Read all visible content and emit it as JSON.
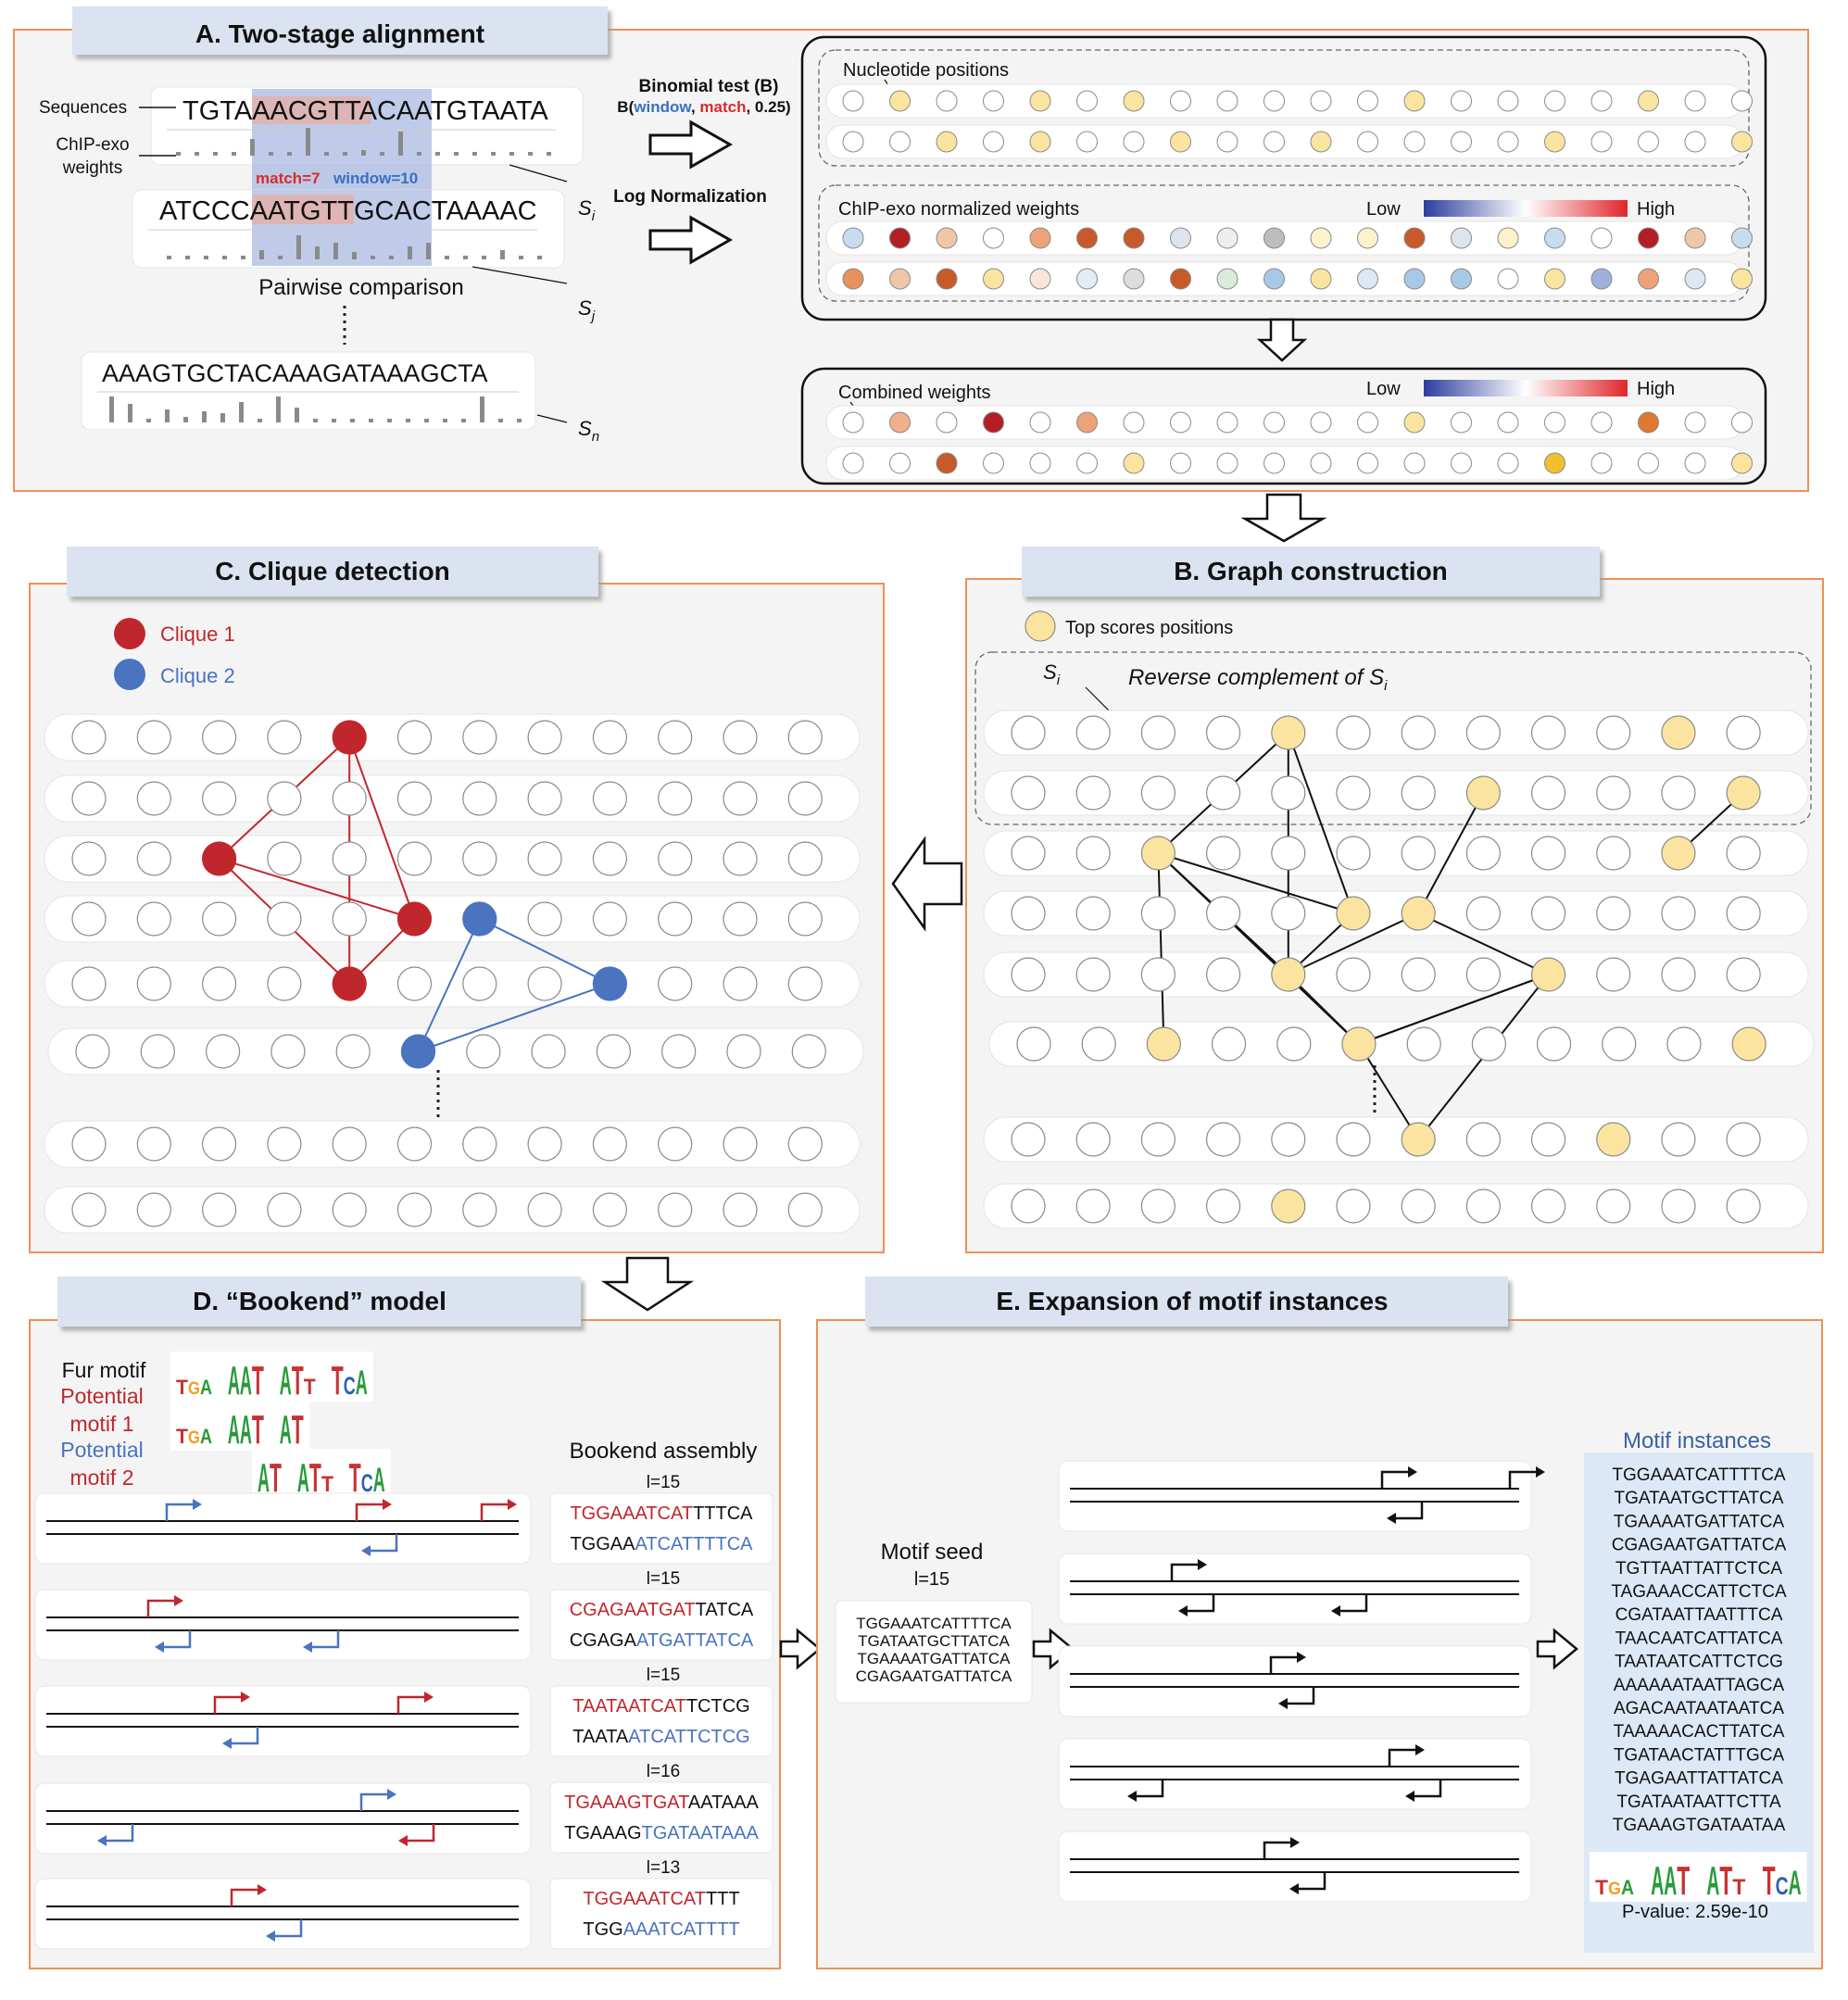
{
  "panel_a": {
    "title": "A. Two-stage alignment",
    "label_sequences": "Sequences",
    "label_chipexo_1": "ChIP-exo",
    "label_chipexo_2": "weights",
    "seq_i": "TGTAAACGTTACAATGTAATA",
    "seq_j": "ATCCCAATGTTGCACTAAAAC",
    "seq_n": "AAAGTGCTACAAAGATAAAGCTA",
    "match_text": "match=7",
    "window_text": "window=10",
    "pairwise": "Pairwise comparison",
    "s_i": "S",
    "s_i_sub": "i",
    "s_j_sub": "j",
    "s_n_sub": "n",
    "binomial": "Binomial test (B)",
    "binomial_b": "B(",
    "binomial_window": "window",
    "binomial_comma1": ", ",
    "binomial_match": "match",
    "binomial_rest": ", 0.25)",
    "lognorm": "Log Normalization",
    "nucleotide_positions": "Nucleotide positions",
    "chipexo_norm": "ChIP-exo normalized weights",
    "combined": "Combined weights",
    "low": "Low",
    "high": "High",
    "nuc_row1": [
      "#fff",
      "#fbe4a0",
      "#fff",
      "#fff",
      "#fbe4a0",
      "#fff",
      "#fbe4a0",
      "#fff",
      "#fff",
      "#fff",
      "#fff",
      "#fff",
      "#fbe4a0",
      "#fff",
      "#fff",
      "#fff",
      "#fff",
      "#fbe4a0",
      "#fff",
      "#fff"
    ],
    "nuc_row2": [
      "#fff",
      "#fff",
      "#fbe4a0",
      "#fff",
      "#fbe4a0",
      "#fff",
      "#fff",
      "#fbe4a0",
      "#fff",
      "#fff",
      "#fbe4a0",
      "#fff",
      "#fff",
      "#fff",
      "#fff",
      "#fbe4a0",
      "#fff",
      "#fff",
      "#fff",
      "#fbe4a0"
    ],
    "chip_row1": [
      "#c8dcf0",
      "#b21e24",
      "#f0c6a8",
      "#fff",
      "#eda27a",
      "#c85a2a",
      "#c85a2a",
      "#dde4ee",
      "#eeeeee",
      "#bdbdbd",
      "#fdf2cc",
      "#fdf2cc",
      "#c85a2a",
      "#dde4ee",
      "#fdf2cc",
      "#c8dcf0",
      "#fff",
      "#b21e24",
      "#f0c6a8",
      "#c8dcf0"
    ],
    "chip_row2": [
      "#e8905e",
      "#f0c6a8",
      "#c85a2a",
      "#fbe4a0",
      "#fbe4d8",
      "#e0ecf6",
      "#dddddd",
      "#c85a2a",
      "#dceadc",
      "#a8c8e8",
      "#fbe4a0",
      "#dce8f4",
      "#a8c8e8",
      "#a8c8e8",
      "#fff",
      "#fbe4a0",
      "#9fb0dc",
      "#eda27a",
      "#dce8f4",
      "#fbe4a0"
    ],
    "comb_row1": [
      "#fff",
      "#f0b088",
      "#fff",
      "#b21e24",
      "#fff",
      "#eda27a",
      "#fff",
      "#fff",
      "#fff",
      "#fff",
      "#fff",
      "#fff",
      "#fbe4a0",
      "#fff",
      "#fff",
      "#fff",
      "#fff",
      "#e07830",
      "#fff",
      "#fff"
    ],
    "comb_row2": [
      "#fff",
      "#fff",
      "#c85a2a",
      "#fff",
      "#fff",
      "#fff",
      "#fbe4a0",
      "#fff",
      "#fff",
      "#fff",
      "#fff",
      "#fff",
      "#fff",
      "#fff",
      "#fff",
      "#f0c030",
      "#fff",
      "#fff",
      "#fff",
      "#fbe4a0"
    ],
    "colors": {
      "match": "#d62c2c",
      "window": "#3a6fc4",
      "frame": "#ee9055"
    }
  },
  "panel_b": {
    "title": "B. Graph construction",
    "legend": "Top scores positions",
    "s_i": "S",
    "s_i_sub": "i",
    "reverse_complement": "Reverse complement of S",
    "reverse_complement_sub": "i"
  },
  "panel_c": {
    "title": "C. Clique detection",
    "clique1": "Clique 1",
    "clique2": "Clique 2",
    "colors": {
      "clique1": "#c0272d",
      "clique2": "#4a73c0"
    }
  },
  "panel_d": {
    "title": "D. “Bookend” model",
    "fur_motif": "Fur motif",
    "potential1_a": "Potential",
    "potential1_b": "motif 1",
    "potential2_a": "Potential",
    "potential2_b": "motif 2",
    "logo_fur": "TGA AAT ATT TCA",
    "logo_p1": "TGA AAT AT",
    "logo_p2": "AT ATT TCA",
    "bookend_assembly": "Bookend assembly",
    "assemblies": [
      {
        "l": "l=15",
        "top_red": "TGGAAATCAT",
        "top_black": "TTTCA",
        "bot_black": "TGGAA",
        "bot_blue": "ATCATTTTCA"
      },
      {
        "l": "l=15",
        "top_red": "CGAGAATGAT",
        "top_black": "TATCA",
        "bot_black": "CGAGA",
        "bot_blue": "ATGATTATCA"
      },
      {
        "l": "l=15",
        "top_red": "TAATAATCAT",
        "top_black": "TCTCG",
        "bot_black": "TAATA",
        "bot_blue": "ATCATTCTCG"
      },
      {
        "l": "l=16",
        "top_red": "TGAAAGTGAT",
        "top_black": "AATAAA",
        "bot_black": "TGAAAG",
        "bot_blue": "TGATAATAAA"
      },
      {
        "l": "l=13",
        "top_red": "TGGAAATCAT",
        "top_black": "TTT",
        "bot_black": "TGG",
        "bot_blue": "AAATCATTTT"
      }
    ]
  },
  "panel_e": {
    "title": "E. Expansion of motif instances",
    "motif_seed": "Motif seed",
    "seed_l": "l=15",
    "seeds": [
      "TGGAAATCATTTTCA",
      "TGATAATGCTTATCA",
      "TGAAAATGATTATCA",
      "CGAGAATGATTATCA"
    ],
    "motif_instances": "Motif instances",
    "instances": [
      "TGGAAATCATTTTCA",
      "TGATAATGCTTATCA",
      "TGAAAATGATTATCA",
      "CGAGAATGATTATCA",
      "TGTTAATTATTCTCA",
      "TAGAAACCATTCTCA",
      "CGATAATTAATTTCA",
      "TAACAATCATTATCA",
      "TAATAATCATTCTCG",
      "AAAAAATAATTAGCA",
      "AGACAATAATAATCA",
      "TAAAAACACTTATCA",
      "TGATAACTATTTGCA",
      "TGAGAATTATTATCA",
      "TGATAATAATTCTTA",
      "TGAAAGTGATAATAA"
    ],
    "logo": "TGA AAT ATT TCA",
    "pvalue": "P-value: 2.59e-10"
  }
}
